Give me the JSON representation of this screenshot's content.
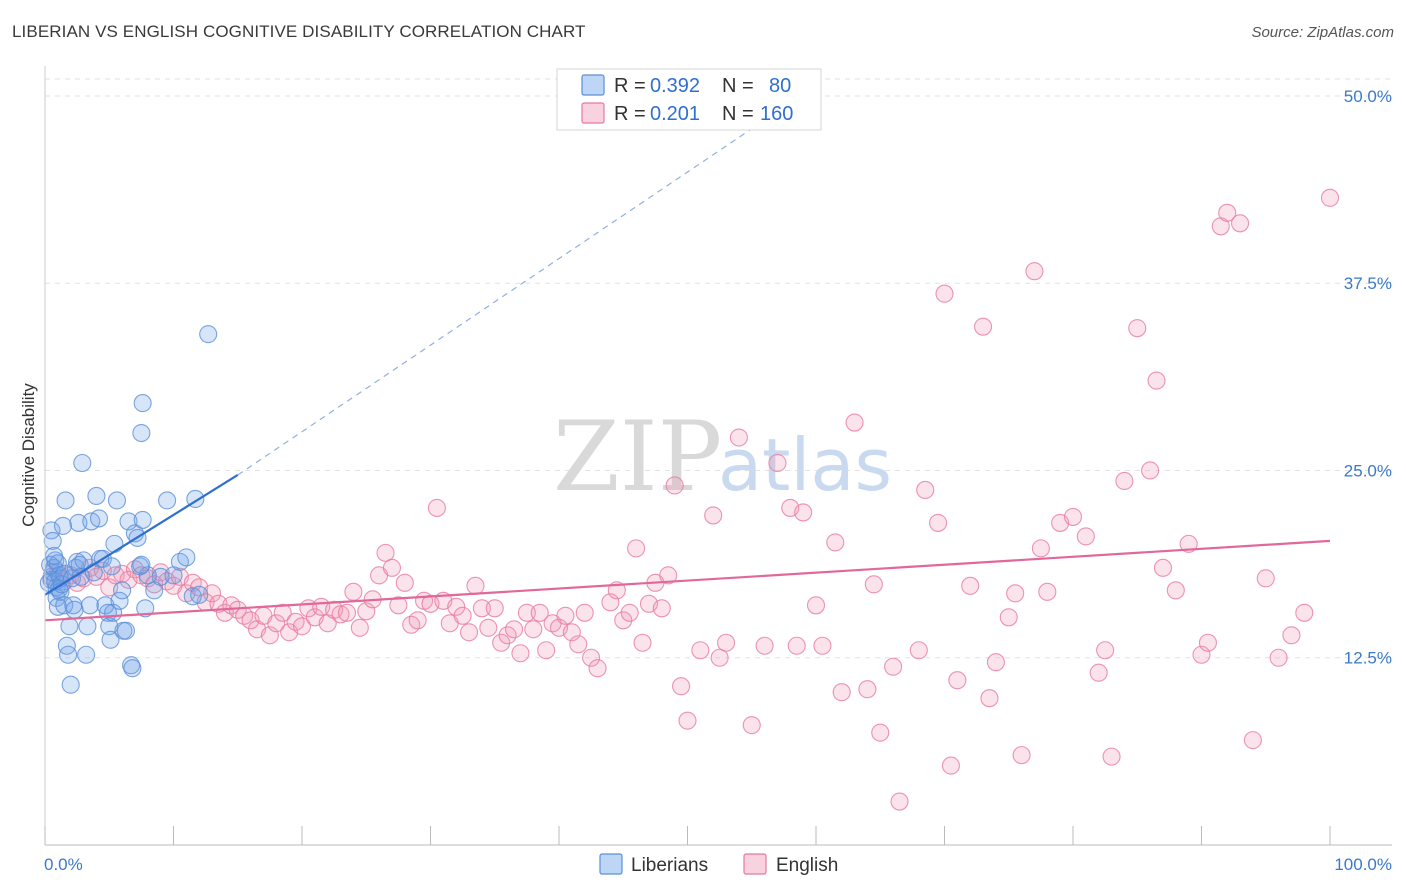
{
  "header": {
    "title": "LIBERIAN VS ENGLISH COGNITIVE DISABILITY CORRELATION CHART",
    "source": "Source: ZipAtlas.com"
  },
  "watermark": {
    "part1": "ZIP",
    "part2": "atlas"
  },
  "legend": {
    "rows": [
      {
        "r_label": "R = ",
        "r_value": "0.392",
        "n_label": "N = ",
        "n_value": "80",
        "color": "#6fa3e8"
      },
      {
        "r_label": "R = ",
        "r_value": "0.201",
        "n_label": "N = ",
        "n_value": "160",
        "color": "#f29bb8"
      }
    ]
  },
  "bottom_legend": {
    "items": [
      "Liberians",
      "English"
    ]
  },
  "chart_data": {
    "type": "scatter",
    "title": "LIBERIAN VS ENGLISH COGNITIVE DISABILITY CORRELATION CHART",
    "xlabel": "",
    "ylabel": "Cognitive Disability",
    "xlim": [
      0,
      100
    ],
    "ylim": [
      0,
      52
    ],
    "x_tick_labels": [
      "0.0%",
      "100.0%"
    ],
    "y_ticks": [
      12.5,
      25.0,
      37.5,
      50.0
    ],
    "y_tick_labels": [
      "12.5%",
      "25.0%",
      "37.5%",
      "50.0%"
    ],
    "grid": true,
    "series": [
      {
        "name": "Liberians",
        "color": "#6fa3e8",
        "stroke": "#5b8fd8",
        "trend": {
          "x0": 0,
          "y0": 16.7,
          "x1": 15,
          "y1": 24.7,
          "dash_x1": 60,
          "dash_y1": 50.7
        },
        "points": [
          [
            0.3,
            17.5
          ],
          [
            0.4,
            18.7
          ],
          [
            0.5,
            17.7
          ],
          [
            0.6,
            18.2
          ],
          [
            0.7,
            18.5
          ],
          [
            0.8,
            19.0
          ],
          [
            0.9,
            17.2
          ],
          [
            1.0,
            18.8
          ],
          [
            1.1,
            18.0
          ],
          [
            1.2,
            17.8
          ],
          [
            0.5,
            21.0
          ],
          [
            0.6,
            20.3
          ],
          [
            0.7,
            19.3
          ],
          [
            0.8,
            17.6
          ],
          [
            0.9,
            16.5
          ],
          [
            1.0,
            15.9
          ],
          [
            1.1,
            17.1
          ],
          [
            1.2,
            16.9
          ],
          [
            1.3,
            17.4
          ],
          [
            1.5,
            18.1
          ],
          [
            1.4,
            21.3
          ],
          [
            1.6,
            23.0
          ],
          [
            1.5,
            16.0
          ],
          [
            1.7,
            13.3
          ],
          [
            1.8,
            12.7
          ],
          [
            1.9,
            14.6
          ],
          [
            2.0,
            10.7
          ],
          [
            2.1,
            17.8
          ],
          [
            2.2,
            16.0
          ],
          [
            2.3,
            15.7
          ],
          [
            2.4,
            18.5
          ],
          [
            2.5,
            18.9
          ],
          [
            2.6,
            21.5
          ],
          [
            2.7,
            18.7
          ],
          [
            2.8,
            17.9
          ],
          [
            2.9,
            25.5
          ],
          [
            3.0,
            19.0
          ],
          [
            3.2,
            12.7
          ],
          [
            3.3,
            14.6
          ],
          [
            3.5,
            16.0
          ],
          [
            3.6,
            21.6
          ],
          [
            3.8,
            18.2
          ],
          [
            4.0,
            23.3
          ],
          [
            4.2,
            21.8
          ],
          [
            4.3,
            19.1
          ],
          [
            4.5,
            19.1
          ],
          [
            4.7,
            16.0
          ],
          [
            4.9,
            15.5
          ],
          [
            5.0,
            14.6
          ],
          [
            5.1,
            13.7
          ],
          [
            5.2,
            18.6
          ],
          [
            5.3,
            15.5
          ],
          [
            5.4,
            20.1
          ],
          [
            5.6,
            23.0
          ],
          [
            5.8,
            16.3
          ],
          [
            6.0,
            17.0
          ],
          [
            6.1,
            14.3
          ],
          [
            6.3,
            14.3
          ],
          [
            6.5,
            21.6
          ],
          [
            6.7,
            12.0
          ],
          [
            6.8,
            11.8
          ],
          [
            7.0,
            20.8
          ],
          [
            7.2,
            20.5
          ],
          [
            7.4,
            18.6
          ],
          [
            7.6,
            21.7
          ],
          [
            7.8,
            15.8
          ],
          [
            8.0,
            18.0
          ],
          [
            7.5,
            18.7
          ],
          [
            8.5,
            17.0
          ],
          [
            9.0,
            17.9
          ],
          [
            9.5,
            23.0
          ],
          [
            10.0,
            18.0
          ],
          [
            10.5,
            18.9
          ],
          [
            11.0,
            19.2
          ],
          [
            7.5,
            27.5
          ],
          [
            7.6,
            29.5
          ],
          [
            11.5,
            16.6
          ],
          [
            12.0,
            16.7
          ],
          [
            12.7,
            34.1
          ],
          [
            11.7,
            23.1
          ]
        ]
      },
      {
        "name": "English",
        "color": "#f29bb8",
        "stroke": "#e8799f",
        "trend": {
          "x0": 0,
          "y0": 15.0,
          "x1": 100,
          "y1": 20.3
        },
        "points": [
          [
            0.5,
            17.9
          ],
          [
            1.0,
            18.2
          ],
          [
            1.5,
            17.6
          ],
          [
            2.0,
            18.0
          ],
          [
            2.5,
            17.5
          ],
          [
            3.0,
            17.8
          ],
          [
            3.5,
            18.5
          ],
          [
            4.0,
            17.9
          ],
          [
            4.5,
            18.3
          ],
          [
            5.0,
            17.2
          ],
          [
            5.5,
            18.0
          ],
          [
            6.0,
            18.1
          ],
          [
            6.5,
            17.7
          ],
          [
            7.0,
            18.4
          ],
          [
            7.5,
            18.0
          ],
          [
            8.0,
            17.8
          ],
          [
            8.5,
            17.4
          ],
          [
            9.0,
            18.2
          ],
          [
            9.5,
            17.6
          ],
          [
            10.0,
            17.3
          ],
          [
            10.5,
            17.9
          ],
          [
            11.0,
            16.8
          ],
          [
            11.5,
            17.5
          ],
          [
            12.0,
            17.2
          ],
          [
            12.5,
            16.2
          ],
          [
            13.0,
            16.8
          ],
          [
            13.5,
            16.1
          ],
          [
            14.0,
            15.5
          ],
          [
            14.5,
            16.0
          ],
          [
            15.0,
            15.7
          ],
          [
            15.5,
            15.3
          ],
          [
            16.0,
            15.0
          ],
          [
            16.5,
            14.4
          ],
          [
            17.0,
            15.3
          ],
          [
            17.5,
            14.0
          ],
          [
            18.0,
            14.8
          ],
          [
            18.5,
            15.5
          ],
          [
            19.0,
            14.2
          ],
          [
            19.5,
            14.9
          ],
          [
            20.0,
            14.6
          ],
          [
            20.5,
            15.8
          ],
          [
            21.0,
            15.2
          ],
          [
            21.5,
            15.9
          ],
          [
            22.0,
            14.8
          ],
          [
            22.5,
            15.7
          ],
          [
            23.0,
            15.4
          ],
          [
            23.5,
            15.5
          ],
          [
            24.0,
            16.9
          ],
          [
            24.5,
            14.5
          ],
          [
            25.0,
            15.6
          ],
          [
            25.5,
            16.4
          ],
          [
            26.0,
            18.0
          ],
          [
            26.5,
            19.5
          ],
          [
            27.0,
            18.5
          ],
          [
            27.5,
            16.0
          ],
          [
            28.0,
            17.5
          ],
          [
            28.5,
            14.7
          ],
          [
            29.0,
            15.0
          ],
          [
            29.5,
            16.3
          ],
          [
            30.0,
            16.1
          ],
          [
            30.5,
            22.5
          ],
          [
            31.0,
            16.3
          ],
          [
            31.5,
            14.8
          ],
          [
            32.0,
            15.9
          ],
          [
            32.5,
            15.3
          ],
          [
            33.0,
            14.2
          ],
          [
            33.5,
            17.3
          ],
          [
            34.0,
            15.8
          ],
          [
            34.5,
            14.5
          ],
          [
            35.0,
            15.8
          ],
          [
            35.5,
            13.5
          ],
          [
            36.0,
            14.0
          ],
          [
            36.5,
            14.4
          ],
          [
            37.0,
            12.8
          ],
          [
            37.5,
            15.5
          ],
          [
            38.0,
            14.4
          ],
          [
            38.5,
            15.5
          ],
          [
            39.0,
            13.0
          ],
          [
            39.5,
            14.8
          ],
          [
            40.0,
            14.5
          ],
          [
            40.5,
            15.3
          ],
          [
            41.0,
            14.2
          ],
          [
            41.5,
            13.4
          ],
          [
            42.0,
            15.5
          ],
          [
            42.5,
            12.5
          ],
          [
            43.0,
            11.8
          ],
          [
            44.0,
            16.2
          ],
          [
            44.5,
            17.0
          ],
          [
            45.0,
            15.0
          ],
          [
            45.5,
            15.5
          ],
          [
            46.0,
            19.8
          ],
          [
            46.5,
            13.5
          ],
          [
            47.0,
            16.1
          ],
          [
            47.5,
            17.5
          ],
          [
            48.0,
            15.8
          ],
          [
            48.5,
            18.0
          ],
          [
            49.0,
            24.0
          ],
          [
            49.5,
            10.6
          ],
          [
            50.0,
            8.3
          ],
          [
            51.0,
            13.0
          ],
          [
            52.0,
            22.0
          ],
          [
            52.5,
            12.5
          ],
          [
            53.0,
            13.5
          ],
          [
            54.0,
            27.2
          ],
          [
            55.0,
            8.0
          ],
          [
            56.0,
            13.3
          ],
          [
            57.0,
            25.5
          ],
          [
            58.0,
            22.5
          ],
          [
            58.5,
            13.3
          ],
          [
            59.0,
            22.2
          ],
          [
            60.0,
            16.0
          ],
          [
            60.5,
            13.3
          ],
          [
            61.5,
            20.2
          ],
          [
            62.0,
            10.2
          ],
          [
            63.0,
            28.2
          ],
          [
            64.0,
            10.4
          ],
          [
            64.5,
            17.4
          ],
          [
            65.0,
            7.5
          ],
          [
            66.0,
            11.9
          ],
          [
            66.5,
            2.9
          ],
          [
            68.0,
            13.0
          ],
          [
            68.5,
            23.7
          ],
          [
            69.5,
            21.5
          ],
          [
            70.0,
            36.8
          ],
          [
            70.5,
            5.3
          ],
          [
            71.0,
            11.0
          ],
          [
            72.0,
            17.3
          ],
          [
            73.0,
            34.6
          ],
          [
            73.5,
            9.8
          ],
          [
            74.0,
            12.2
          ],
          [
            75.0,
            15.2
          ],
          [
            75.5,
            16.8
          ],
          [
            76.0,
            6.0
          ],
          [
            77.0,
            38.3
          ],
          [
            77.5,
            19.8
          ],
          [
            78.0,
            16.9
          ],
          [
            79.0,
            21.5
          ],
          [
            80.0,
            21.9
          ],
          [
            81.0,
            20.6
          ],
          [
            82.0,
            11.5
          ],
          [
            82.5,
            13.0
          ],
          [
            83.0,
            5.9
          ],
          [
            84.0,
            24.3
          ],
          [
            85.0,
            34.5
          ],
          [
            86.0,
            25.0
          ],
          [
            86.5,
            31.0
          ],
          [
            87.0,
            18.5
          ],
          [
            88.0,
            17.0
          ],
          [
            89.0,
            20.1
          ],
          [
            90.0,
            12.7
          ],
          [
            90.5,
            13.5
          ],
          [
            91.5,
            41.3
          ],
          [
            92.0,
            42.2
          ],
          [
            93.0,
            41.5
          ],
          [
            94.0,
            7.0
          ],
          [
            95.0,
            17.8
          ],
          [
            96.0,
            12.5
          ],
          [
            97.0,
            14.0
          ],
          [
            98.0,
            15.5
          ],
          [
            100.0,
            43.2
          ]
        ]
      }
    ]
  }
}
